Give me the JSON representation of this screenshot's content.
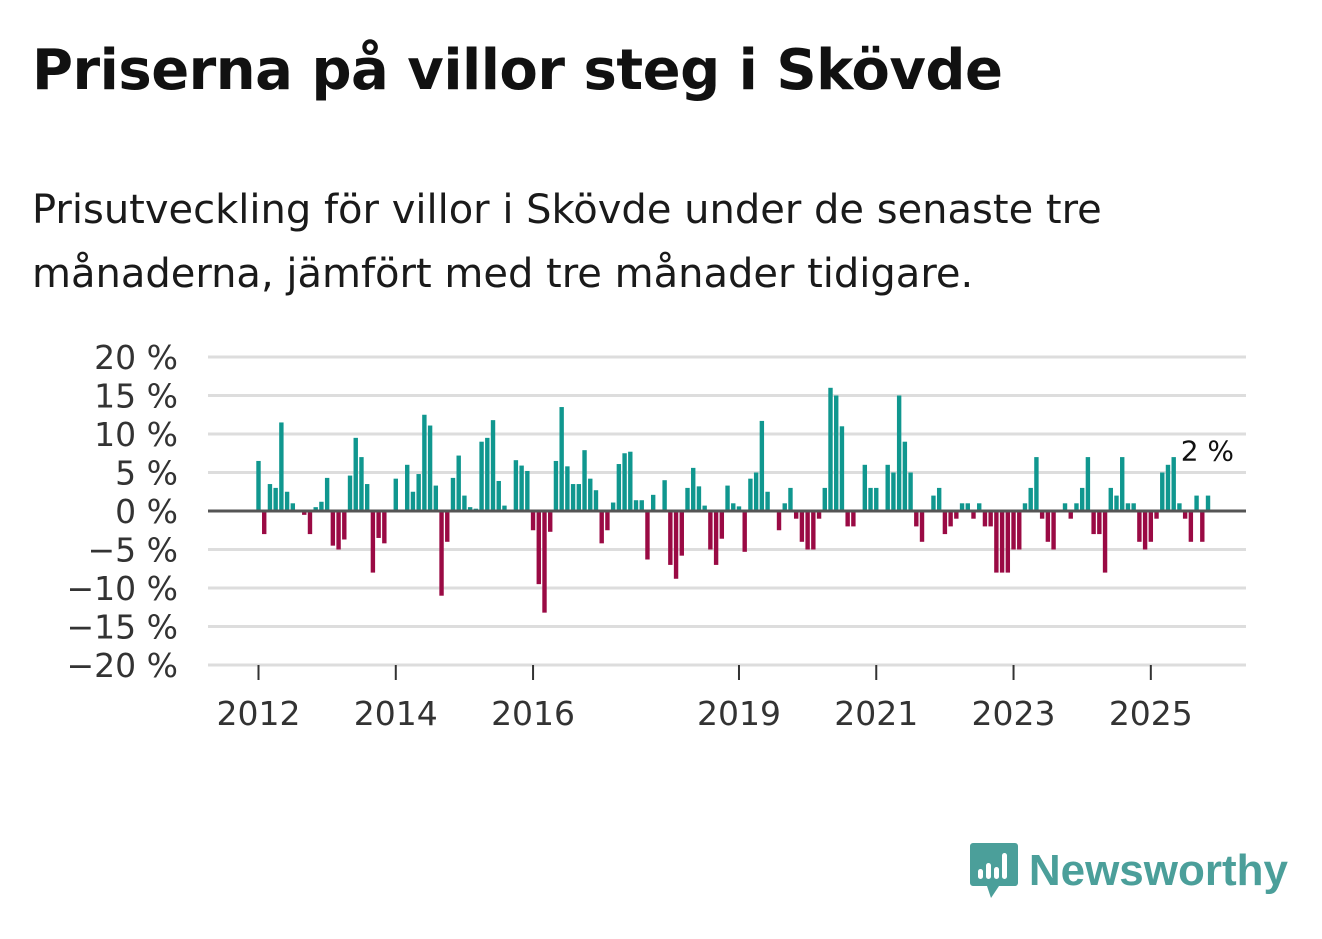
{
  "title": "Priserna på villor steg i Skövde",
  "subtitle": "Prisutveckling för villor i Skövde under de senaste tre månaderna, jämfört med tre månader tidigare.",
  "brand": "Newsworthy",
  "colors": {
    "positive": "#10978f",
    "negative": "#9a0a44",
    "zero_line": "#555555",
    "grid": "#dddddd",
    "brand": "#4b9f9a"
  },
  "chart_data": {
    "type": "bar",
    "title": "Priserna på villor steg i Skövde",
    "xlabel": "",
    "ylabel": "",
    "ylim": [
      -20,
      20
    ],
    "y_ticks": [
      20,
      15,
      10,
      5,
      0,
      -5,
      -10,
      -15,
      -20
    ],
    "y_tick_labels": [
      "20 %",
      "15 %",
      "10 %",
      "5 %",
      "0 %",
      "−5 %",
      "−10 %",
      "−15 %",
      "−20 %"
    ],
    "x_tick_labels": [
      {
        "label": "2012",
        "index": 0
      },
      {
        "label": "2014",
        "index": 24
      },
      {
        "label": "2016",
        "index": 48
      },
      {
        "label": "2019",
        "index": 84
      },
      {
        "label": "2021",
        "index": 108
      },
      {
        "label": "2023",
        "index": 132
      },
      {
        "label": "2025",
        "index": 156
      }
    ],
    "end_label": "2 %",
    "unit": "monthly, from January 2012",
    "values": [
      6.5,
      -3,
      3.5,
      3,
      11.5,
      2.5,
      1,
      0,
      -0.5,
      -3,
      0.5,
      1.2,
      4.3,
      -4.5,
      -5,
      -3.7,
      4.6,
      9.5,
      7,
      3.5,
      -8,
      -3.5,
      -4.2,
      0,
      4.2,
      0,
      6,
      2.5,
      4.8,
      12.5,
      11.1,
      3.3,
      -11,
      -4,
      4.3,
      7.2,
      2,
      0.5,
      0.3,
      9,
      9.5,
      11.8,
      3.9,
      0.7,
      0,
      6.6,
      5.9,
      5.2,
      -2.5,
      -9.5,
      -13.2,
      -2.7,
      6.5,
      13.5,
      5.8,
      3.5,
      3.5,
      7.9,
      4.2,
      2.7,
      -4.2,
      -2.5,
      1.1,
      6.1,
      7.5,
      7.7,
      1.4,
      1.4,
      -6.3,
      2.1,
      0,
      4,
      -7,
      -8.8,
      -5.8,
      3,
      5.6,
      3.2,
      0.7,
      -5,
      -7,
      -3.6,
      3.3,
      1,
      0.6,
      -5.3,
      4.2,
      5,
      11.7,
      2.5,
      0.1,
      -2.5,
      1,
      3,
      -1,
      -4,
      -5,
      -5,
      -1,
      3,
      16,
      15,
      11,
      -2,
      -2,
      0,
      6,
      3,
      3,
      0,
      6,
      5,
      15,
      9,
      5,
      -2,
      -4,
      0,
      2,
      3,
      -3,
      -2,
      -1,
      1,
      1,
      -1,
      1,
      -2,
      -2,
      -8,
      -8,
      -8,
      -5,
      -5,
      1,
      3,
      7,
      -1,
      -4,
      -5,
      0,
      1,
      -1,
      1,
      3,
      7,
      -3,
      -3,
      -8,
      3,
      2,
      7,
      1,
      1,
      -4,
      -5,
      -4,
      -1,
      5,
      6,
      7,
      1,
      -1,
      -4,
      2,
      -4,
      2
    ]
  }
}
